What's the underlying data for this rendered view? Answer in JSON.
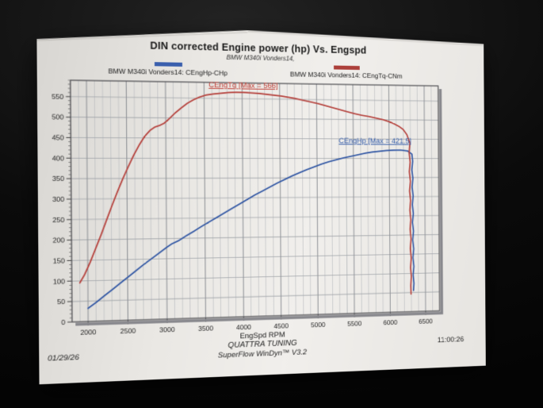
{
  "header": {
    "title": "DIN corrected Engine power (hp) Vs. Engspd",
    "subtitle": "BMW M340i Vonders14,"
  },
  "legend": {
    "hp": {
      "label": "BMW M340i Vonders14: CEngHp-CHp",
      "color": "#3a5fad"
    },
    "tq": {
      "label": "BMW M340i Vonders14: CEngTq-CNm",
      "color": "#ac3f3a"
    }
  },
  "footer": {
    "axis_label": "EngSpd RPM",
    "shop": "QUATTRA TUNING",
    "software": "SuperFlow WinDyn™ V3.2",
    "date": "01/29/26",
    "time": "11:00:26"
  },
  "colors": {
    "grid_minor": "#b6b9bd",
    "grid_major": "#8e9196",
    "grid_horizontal": "#9fa3a8",
    "plot_border": "#4b4b4f",
    "plot_shadow": "#86868b",
    "tick_text": "#242424"
  },
  "chart_data": {
    "type": "line",
    "title": "DIN corrected Engine power (hp) Vs. Engspd",
    "subtitle": "BMW M340i Vonders14,",
    "xlabel": "EngSpd RPM",
    "ylabel": "",
    "x_range": [
      1800,
      6700
    ],
    "x_major_ticks": [
      2000,
      2500,
      3000,
      3500,
      4000,
      4500,
      5000,
      5500,
      6000,
      6500
    ],
    "x_minor_step": 100,
    "y_range": [
      0,
      590
    ],
    "y_label_max": 550,
    "y_major_step": 50,
    "y_minor_step": 10,
    "grid": true,
    "legend_position": "top",
    "annotations": [
      {
        "text": "CEngTq [Max = 566]",
        "color": "#c13b32",
        "x": 3560,
        "y": 578
      },
      {
        "text": "CEngHp [Max = 421.5]",
        "color": "#3059a8",
        "x": 5300,
        "y": 439
      }
    ],
    "series": [
      {
        "name": "BMW M340i Vonders14: CEngHp-CHp",
        "unit": "hp",
        "color": "#2f55a3",
        "max": 421.5,
        "points": [
          [
            2000,
            32
          ],
          [
            2100,
            46
          ],
          [
            2200,
            61
          ],
          [
            2300,
            76
          ],
          [
            2400,
            91
          ],
          [
            2500,
            106
          ],
          [
            2600,
            121
          ],
          [
            2700,
            136
          ],
          [
            2800,
            150
          ],
          [
            2900,
            164
          ],
          [
            3000,
            178
          ],
          [
            3070,
            187
          ],
          [
            3160,
            195
          ],
          [
            3260,
            207
          ],
          [
            3360,
            218
          ],
          [
            3460,
            230
          ],
          [
            3560,
            241
          ],
          [
            3660,
            252
          ],
          [
            3760,
            263
          ],
          [
            3860,
            274
          ],
          [
            3960,
            285
          ],
          [
            4060,
            296
          ],
          [
            4160,
            307
          ],
          [
            4260,
            317
          ],
          [
            4360,
            327
          ],
          [
            4460,
            337
          ],
          [
            4560,
            346
          ],
          [
            4660,
            355
          ],
          [
            4760,
            363
          ],
          [
            4860,
            371
          ],
          [
            4960,
            378
          ],
          [
            5060,
            385
          ],
          [
            5160,
            391
          ],
          [
            5260,
            396
          ],
          [
            5360,
            401
          ],
          [
            5460,
            405
          ],
          [
            5560,
            409
          ],
          [
            5660,
            413
          ],
          [
            5760,
            416
          ],
          [
            5860,
            418
          ],
          [
            5960,
            420
          ],
          [
            6060,
            421
          ],
          [
            6160,
            421.5
          ],
          [
            6260,
            419
          ],
          [
            6320,
            411
          ],
          [
            6330,
            392
          ],
          [
            6318,
            370
          ],
          [
            6332,
            348
          ],
          [
            6320,
            325
          ],
          [
            6334,
            302
          ],
          [
            6322,
            279
          ],
          [
            6335,
            256
          ],
          [
            6323,
            233
          ],
          [
            6336,
            210
          ],
          [
            6324,
            187
          ],
          [
            6337,
            164
          ],
          [
            6325,
            141
          ],
          [
            6337,
            118
          ],
          [
            6326,
            96
          ],
          [
            6336,
            74
          ],
          [
            6330,
            55
          ]
        ]
      },
      {
        "name": "BMW M340i Vonders14: CEngTq-CNm",
        "unit": "Nm",
        "color": "#b5403b",
        "max": 566,
        "points": [
          [
            1900,
            95
          ],
          [
            1960,
            115
          ],
          [
            2030,
            145
          ],
          [
            2100,
            178
          ],
          [
            2170,
            212
          ],
          [
            2240,
            248
          ],
          [
            2310,
            284
          ],
          [
            2380,
            318
          ],
          [
            2450,
            350
          ],
          [
            2520,
            380
          ],
          [
            2590,
            408
          ],
          [
            2660,
            433
          ],
          [
            2730,
            454
          ],
          [
            2800,
            469
          ],
          [
            2860,
            477
          ],
          [
            2920,
            481
          ],
          [
            2980,
            487
          ],
          [
            3040,
            497
          ],
          [
            3120,
            512
          ],
          [
            3200,
            525
          ],
          [
            3280,
            537
          ],
          [
            3360,
            546
          ],
          [
            3440,
            553
          ],
          [
            3520,
            558
          ],
          [
            3620,
            561
          ],
          [
            3720,
            563
          ],
          [
            3820,
            565
          ],
          [
            3920,
            566
          ],
          [
            4020,
            566
          ],
          [
            4120,
            565
          ],
          [
            4220,
            564
          ],
          [
            4320,
            562
          ],
          [
            4420,
            560
          ],
          [
            4520,
            558
          ],
          [
            4620,
            555
          ],
          [
            4720,
            552
          ],
          [
            4820,
            548
          ],
          [
            4920,
            544
          ],
          [
            5020,
            540
          ],
          [
            5120,
            535
          ],
          [
            5220,
            530
          ],
          [
            5320,
            525
          ],
          [
            5420,
            520
          ],
          [
            5520,
            515
          ],
          [
            5620,
            511
          ],
          [
            5720,
            508
          ],
          [
            5820,
            504
          ],
          [
            5920,
            500
          ],
          [
            6020,
            494
          ],
          [
            6080,
            489
          ],
          [
            6140,
            483
          ],
          [
            6200,
            475
          ],
          [
            6250,
            462
          ],
          [
            6292,
            440
          ],
          [
            6280,
            415
          ],
          [
            6294,
            390
          ],
          [
            6282,
            365
          ],
          [
            6296,
            340
          ],
          [
            6284,
            315
          ],
          [
            6297,
            290
          ],
          [
            6286,
            265
          ],
          [
            6298,
            240
          ],
          [
            6287,
            215
          ],
          [
            6299,
            190
          ],
          [
            6288,
            165
          ],
          [
            6300,
            140
          ],
          [
            6290,
            115
          ],
          [
            6300,
            92
          ],
          [
            6292,
            68
          ],
          [
            6295,
            46
          ]
        ]
      }
    ]
  }
}
